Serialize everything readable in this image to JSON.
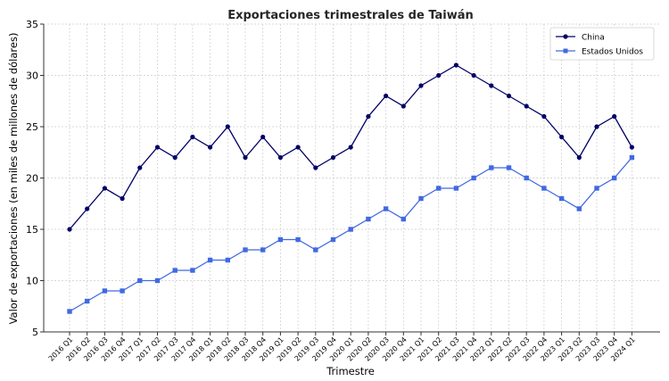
{
  "chart_data": {
    "type": "line",
    "title": "Exportaciones trimestrales de Taiwán",
    "xlabel": "Trimestre",
    "ylabel": "Valor de exportaciones (en miles de millones de dólares)",
    "ylim": [
      5,
      35
    ],
    "yticks": [
      5,
      10,
      15,
      20,
      25,
      30,
      35
    ],
    "grid": true,
    "legend_position": "upper right",
    "categories": [
      "2016 Q1",
      "2016 Q2",
      "2016 Q3",
      "2016 Q4",
      "2017 Q1",
      "2017 Q2",
      "2017 Q3",
      "2017 Q4",
      "2018 Q1",
      "2018 Q2",
      "2018 Q3",
      "2018 Q4",
      "2019 Q1",
      "2019 Q2",
      "2019 Q3",
      "2019 Q4",
      "2020 Q1",
      "2020 Q2",
      "2020 Q3",
      "2020 Q4",
      "2021 Q1",
      "2021 Q2",
      "2021 Q3",
      "2021 Q4",
      "2022 Q1",
      "2022 Q2",
      "2022 Q3",
      "2022 Q4",
      "2023 Q1",
      "2023 Q2",
      "2023 Q3",
      "2023 Q4",
      "2024 Q1"
    ],
    "series": [
      {
        "name": "China",
        "color": "#000066",
        "marker": "circle",
        "values": [
          15,
          17,
          19,
          18,
          21,
          23,
          22,
          24,
          23,
          25,
          22,
          24,
          22,
          23,
          21,
          22,
          23,
          26,
          28,
          27,
          29,
          30,
          31,
          30,
          29,
          28,
          27,
          26,
          24,
          22,
          25,
          26,
          23
        ]
      },
      {
        "name": "Estados Unidos",
        "color": "#4169e1",
        "marker": "square",
        "values": [
          7,
          8,
          9,
          9,
          10,
          10,
          11,
          11,
          12,
          12,
          13,
          13,
          14,
          14,
          13,
          14,
          15,
          16,
          17,
          16,
          18,
          19,
          19,
          20,
          21,
          21,
          20,
          19,
          18,
          17,
          19,
          20,
          22
        ]
      }
    ]
  }
}
